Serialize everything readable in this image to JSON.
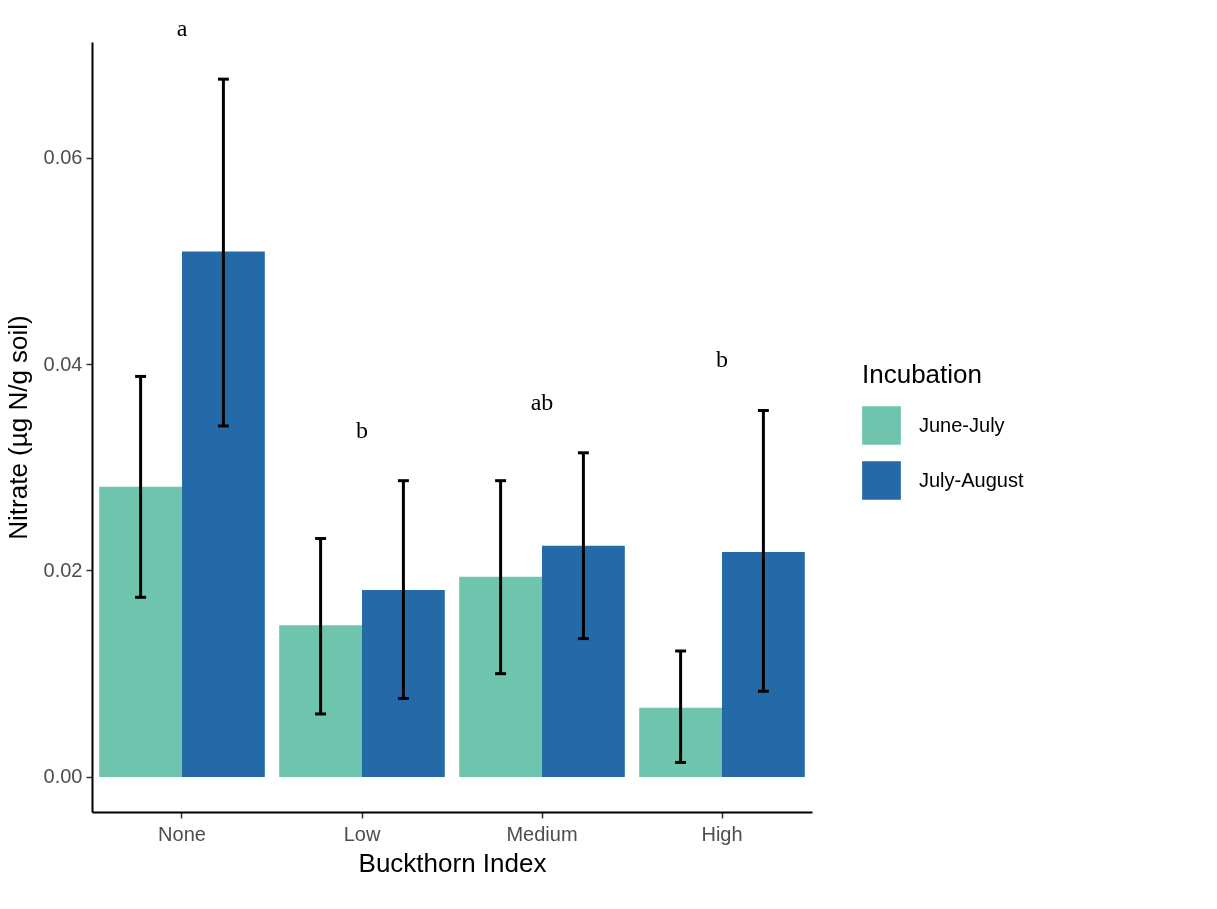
{
  "chart_data": {
    "type": "bar",
    "xlabel": "Buckthorn Index",
    "ylabel": "Nitrate (µg N/g soil)",
    "legend_title": "Incubation",
    "legend": "right",
    "categories": [
      "None",
      "Low",
      "Medium",
      "High"
    ],
    "series": [
      {
        "name": "June-July",
        "color": "#6fc4ae",
        "values": [
          0.0281,
          0.0147,
          0.0194,
          0.0067
        ],
        "errors": [
          [
            0.0174,
            0.0388
          ],
          [
            0.0061,
            0.0231
          ],
          [
            0.01,
            0.0287
          ],
          [
            0.0014,
            0.0122
          ]
        ]
      },
      {
        "name": "July-August",
        "color": "#2469a8",
        "values": [
          0.0509,
          0.0181,
          0.0224,
          0.0218
        ],
        "errors": [
          [
            0.034,
            0.0676
          ],
          [
            0.0076,
            0.0287
          ],
          [
            0.0134,
            0.0314
          ],
          [
            0.0083,
            0.0355
          ]
        ]
      }
    ],
    "ylim": [
      -0.0034,
      0.0712
    ],
    "yticks": [
      {
        "value": 0,
        "label": "0.00"
      },
      {
        "value": 0.02,
        "label": "0.02"
      },
      {
        "value": 0.04,
        "label": "0.04"
      },
      {
        "value": 0.06,
        "label": "0.06"
      }
    ],
    "grid": false,
    "annotations": [
      "a",
      "b",
      "ab",
      "b"
    ]
  }
}
